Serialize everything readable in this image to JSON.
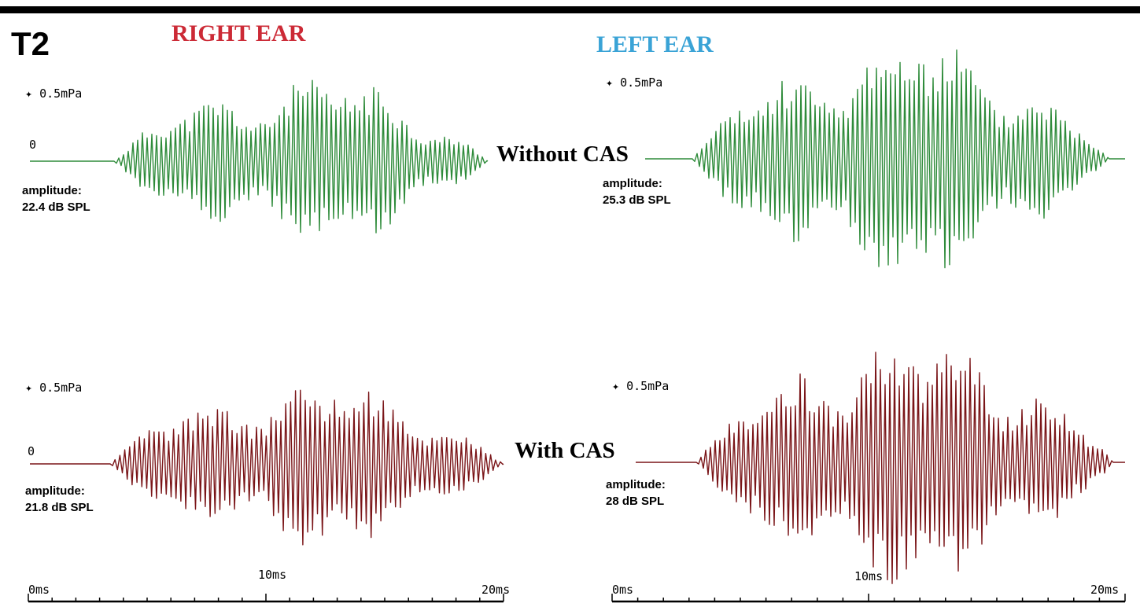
{
  "figure_label": "T2",
  "ear_titles": {
    "right": "RIGHT EAR",
    "left": "LEFT EAR"
  },
  "colors": {
    "right_ear_title": "#cc2a36",
    "left_ear_title": "#3aa3d6",
    "without_cas_trace": "#2e8b3a",
    "with_cas_trace": "#7a1518"
  },
  "conditions": {
    "without": "Without CAS",
    "with": "With CAS"
  },
  "panels": [
    {
      "scale_label": "0.5mPa",
      "zero_label": "0",
      "amplitude_label": "amplitude:",
      "amplitude_value": "22.4 dB SPL"
    },
    {
      "scale_label": "0.5mPa",
      "amplitude_label": "amplitude:",
      "amplitude_value": "25.3 dB SPL"
    },
    {
      "scale_label": "0.5mPa",
      "zero_label": "0",
      "amplitude_label": "amplitude:",
      "amplitude_value": "21.8 dB SPL"
    },
    {
      "scale_label": "0.5mPa",
      "amplitude_label": "amplitude:",
      "amplitude_value": "28 dB SPL"
    }
  ],
  "time_axis": {
    "left": {
      "start": "0ms",
      "mid": "10ms",
      "end": "20ms"
    },
    "right": {
      "start": "0ms",
      "mid": "10ms",
      "end": "20ms"
    }
  },
  "chart_data": [
    {
      "type": "line",
      "series": [
        {
          "name": "Without CAS",
          "ear": "right"
        }
      ],
      "x_range_ms": [
        0,
        20
      ],
      "amplitude_db_spl": 22.4
    },
    {
      "type": "line",
      "series": [
        {
          "name": "Without CAS",
          "ear": "left"
        }
      ],
      "x_range_ms": [
        0,
        20
      ],
      "amplitude_db_spl": 25.3
    },
    {
      "type": "line",
      "series": [
        {
          "name": "With CAS",
          "ear": "right"
        }
      ],
      "x_range_ms": [
        0,
        20
      ],
      "amplitude_db_spl": 21.8
    },
    {
      "type": "line",
      "series": [
        {
          "name": "With CAS",
          "ear": "left"
        }
      ],
      "x_range_ms": [
        0,
        20
      ],
      "amplitude_db_spl": 28
    }
  ]
}
